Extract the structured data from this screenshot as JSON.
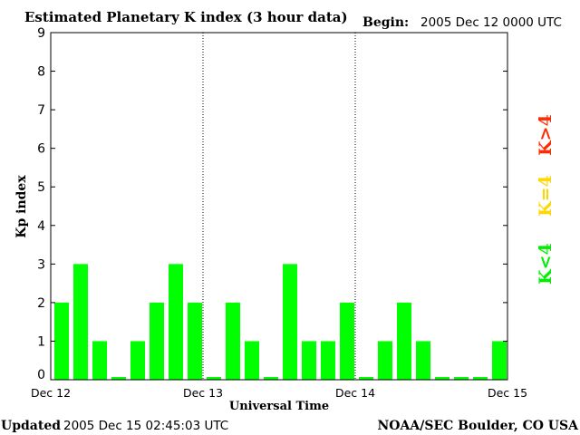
{
  "header": {
    "title": "Estimated Planetary K index (3 hour data)",
    "begin_label": "Begin:",
    "begin_value": "2005 Dec 12 0000 UTC"
  },
  "footer": {
    "updated_label": "Updated",
    "updated_value": "2005 Dec 15 02:45:03 UTC",
    "source": "NOAA/SEC Boulder, CO USA"
  },
  "legend": {
    "high": "K>4",
    "equal": "K=4",
    "low": "K<4"
  },
  "colors": {
    "low": "#00ff00",
    "equal": "#ffd700",
    "high": "#ff2a00",
    "axis": "#000000",
    "background": "#ffffff"
  },
  "chart_data": {
    "type": "bar",
    "title": "Estimated Planetary K index (3 hour data)",
    "xlabel": "Universal Time",
    "ylabel": "Kp index",
    "ylim": [
      0,
      9
    ],
    "yticks": [
      "0",
      "1",
      "2",
      "3",
      "4",
      "5",
      "6",
      "7",
      "8",
      "9"
    ],
    "xticks": [
      "Dec 12",
      "Dec 13",
      "Dec 14",
      "Dec 15"
    ],
    "day_separators": [
      "Dec 13",
      "Dec 14"
    ],
    "bins_per_day": 8,
    "values": [
      2,
      3,
      1,
      0,
      1,
      2,
      3,
      2,
      0,
      2,
      1,
      0,
      3,
      1,
      1,
      2,
      0,
      1,
      2,
      1,
      0,
      0,
      0,
      1
    ],
    "grid": false,
    "legend_position": "right"
  }
}
